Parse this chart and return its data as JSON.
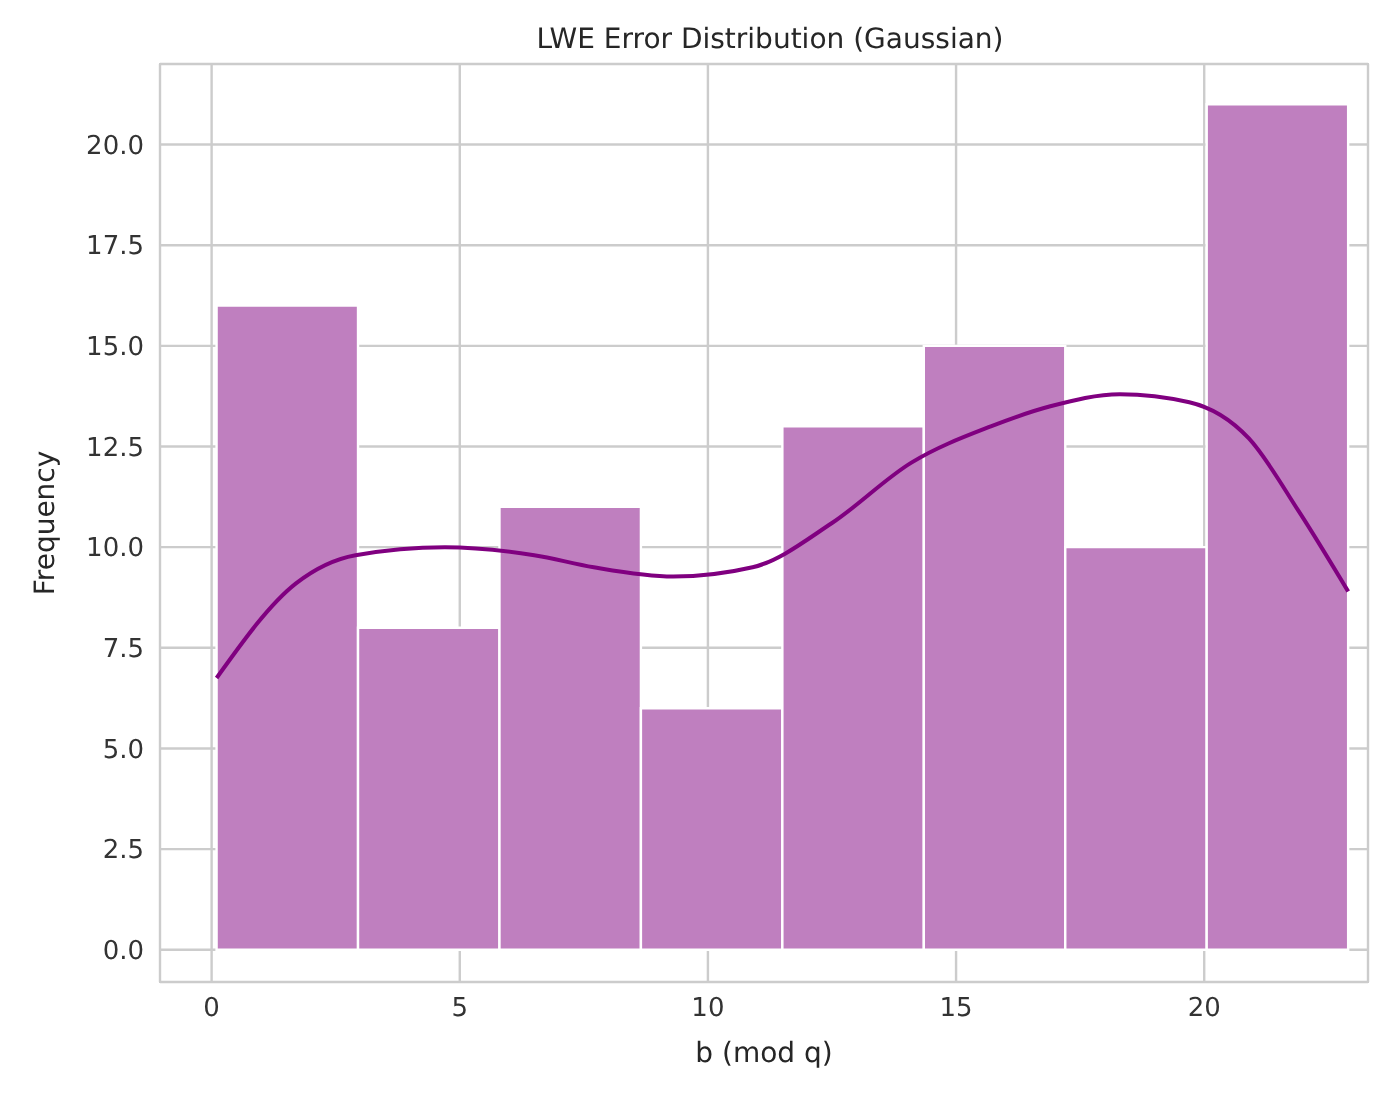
{
  "chart_data": {
    "type": "histogram",
    "title": "LWE Error Distribution (Gaussian)",
    "xlabel": "b (mod q)",
    "ylabel": "Frequency",
    "bins": [
      0.1,
      2.95,
      5.8,
      8.65,
      11.5,
      14.35,
      17.2,
      20.05,
      22.9
    ],
    "values": [
      16,
      8,
      11,
      6,
      13,
      15,
      10,
      21
    ],
    "color": "#bf7fbf",
    "series": [
      {
        "type": "line",
        "color": "#800080",
        "x": [
          0.1,
          1.7,
          2.9,
          4.7,
          6.5,
          7.7,
          9.3,
          10.9,
          12.5,
          14.1,
          15.7,
          16.9,
          18.3,
          19.7,
          20.9,
          21.9,
          22.9
        ],
        "values": [
          6.75,
          9.1,
          9.8,
          10.0,
          9.8,
          9.5,
          9.27,
          9.5,
          10.6,
          12.1,
          13.0,
          13.5,
          13.8,
          13.6,
          12.7,
          10.9,
          8.9
        ]
      }
    ],
    "xlim": [
      -1.04,
      23.3
    ],
    "xticks": [
      0,
      5,
      10,
      15,
      20
    ],
    "ylim": [
      -0.8,
      22.0
    ],
    "yticks": [
      {
        "value": 0,
        "label": "0.0"
      },
      {
        "value": 2.5,
        "label": "2.5"
      },
      {
        "value": 5,
        "label": "5.0"
      },
      {
        "value": 7.5,
        "label": "7.5"
      },
      {
        "value": 10,
        "label": "10.0"
      },
      {
        "value": 12.5,
        "label": "12.5"
      },
      {
        "value": 15,
        "label": "15.0"
      },
      {
        "value": 17.5,
        "label": "17.5"
      },
      {
        "value": 20,
        "label": "20.0"
      }
    ],
    "grid": true
  }
}
